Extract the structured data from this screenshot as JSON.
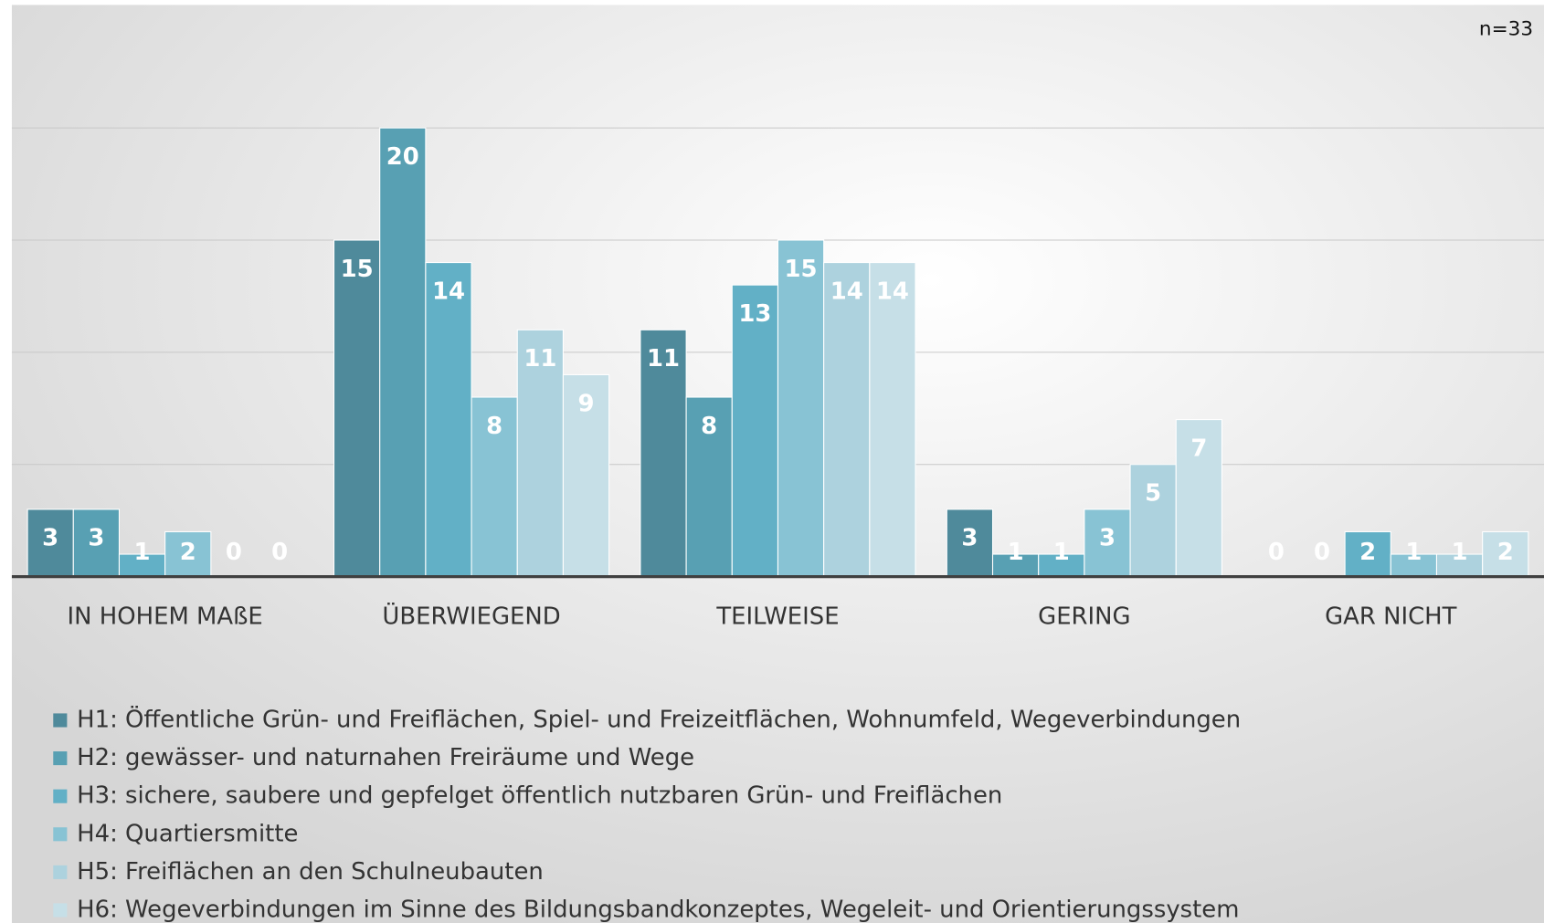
{
  "chart_data": {
    "type": "bar",
    "annotation": "n=33",
    "categories": [
      "IN HOHEM MAßE",
      "ÜBERWIEGEND",
      "TEILWEISE",
      "GERING",
      "GAR NICHT"
    ],
    "series": [
      {
        "name": "H1: Öffentliche Grün- und Freiflächen, Spiel- und Freizeitflächen, Wohnumfeld, Wegeverbindungen",
        "color": "#4f8a9b",
        "values": [
          3,
          15,
          11,
          3,
          0
        ]
      },
      {
        "name": "H2: gewässer- und naturnahen Freiräume und Wege",
        "color": "#58a0b3",
        "values": [
          3,
          20,
          8,
          1,
          0
        ]
      },
      {
        "name": "H3: sichere, saubere und gepfelget öffentlich nutzbaren Grün- und Freiflächen",
        "color": "#62b0c6",
        "values": [
          1,
          14,
          13,
          1,
          2
        ]
      },
      {
        "name": "H4: Quartiersmitte",
        "color": "#88c3d4",
        "values": [
          2,
          8,
          15,
          3,
          1
        ]
      },
      {
        "name": "H5: Freiflächen an den Schulneubauten",
        "color": "#add2de",
        "values": [
          0,
          11,
          14,
          5,
          1
        ]
      },
      {
        "name": "H6: Wegeverbindungen im Sinne des Bildungsbandkonzeptes, Wegeleit- und Orientierungssystem",
        "color": "#c6dfe7",
        "values": [
          0,
          9,
          14,
          7,
          2
        ]
      }
    ],
    "ylim": [
      0,
      25
    ],
    "yticks": [
      0,
      5,
      10,
      15,
      20
    ],
    "grid": true
  }
}
